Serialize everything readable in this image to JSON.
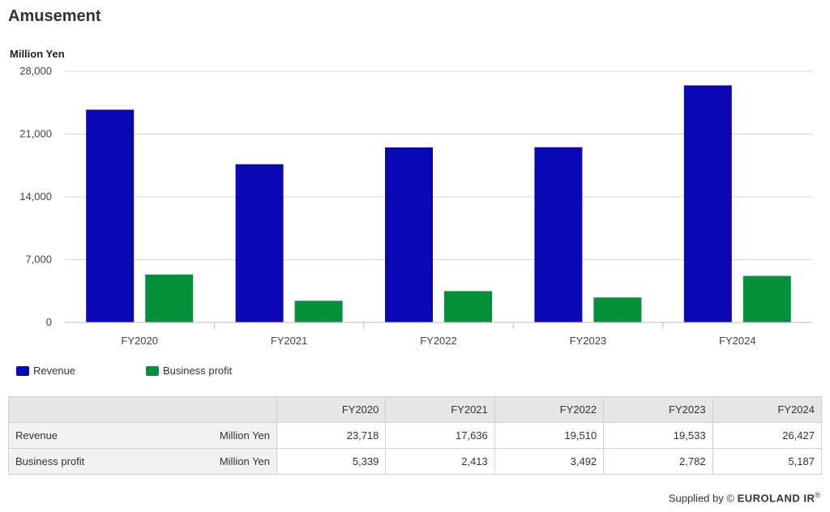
{
  "title": "Amusement",
  "chart_data": {
    "type": "bar",
    "ylabel": "Million Yen",
    "categories": [
      "FY2020",
      "FY2021",
      "FY2022",
      "FY2023",
      "FY2024"
    ],
    "yticks": [
      "0",
      "7,000",
      "14,000",
      "21,000",
      "28,000"
    ],
    "ytick_values": [
      0,
      7000,
      14000,
      21000,
      28000
    ],
    "ylim": [
      0,
      28000
    ],
    "grid": true,
    "legend_position": "bottom-left",
    "series": [
      {
        "name": "Revenue",
        "color": "#0a07b5",
        "values": [
          23718,
          17636,
          19510,
          19533,
          26427
        ]
      },
      {
        "name": "Business profit",
        "color": "#05913a",
        "values": [
          5339,
          2413,
          3492,
          2782,
          5187
        ]
      }
    ]
  },
  "table": {
    "headers": [
      "FY2020",
      "FY2021",
      "FY2022",
      "FY2023",
      "FY2024"
    ],
    "rows": [
      {
        "label": "Revenue",
        "unit": "Million Yen",
        "cells": [
          "23,718",
          "17,636",
          "19,510",
          "19,533",
          "26,427"
        ]
      },
      {
        "label": "Business profit",
        "unit": "Million Yen",
        "cells": [
          "5,339",
          "2,413",
          "3,492",
          "2,782",
          "5,187"
        ]
      }
    ]
  },
  "footer": {
    "prefix": "Supplied by ©",
    "brand": "EUROLAND IR",
    "mark": "®"
  }
}
